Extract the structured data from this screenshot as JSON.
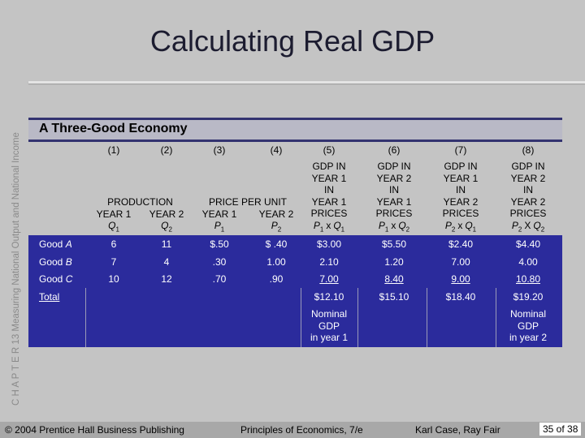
{
  "side_text": "C H A P T E R 13 Measuring National Output and National Income",
  "title": "Calculating Real GDP",
  "table": {
    "title": "A Three-Good Economy",
    "column_numbers": [
      "(1)",
      "(2)",
      "(3)",
      "(4)",
      "(5)",
      "(6)",
      "(7)",
      "(8)"
    ],
    "group_headers": [
      "PRODUCTION",
      "PRICE PER UNIT"
    ],
    "year_labels": [
      "YEAR 1",
      "YEAR 2",
      "YEAR 1",
      "YEAR 2"
    ],
    "symbols": [
      {
        "base": "Q",
        "sub": "1"
      },
      {
        "base": "Q",
        "sub": "2"
      },
      {
        "base": "P",
        "sub": "1"
      },
      {
        "base": "P",
        "sub": "2"
      }
    ],
    "gdp_headers": [
      {
        "lines": [
          "GDP IN",
          "YEAR 1",
          "IN",
          "YEAR 1",
          "PRICES"
        ],
        "formula": {
          "a": "P",
          "a_sub": "1",
          "op": "x",
          "b": "Q",
          "b_sub": "1"
        }
      },
      {
        "lines": [
          "GDP IN",
          "YEAR 2",
          "IN",
          "YEAR 1",
          "PRICES"
        ],
        "formula": {
          "a": "P",
          "a_sub": "1",
          "op": "x",
          "b": "Q",
          "b_sub": "2"
        }
      },
      {
        "lines": [
          "GDP IN",
          "YEAR 1",
          "IN",
          "YEAR 2",
          "PRICES"
        ],
        "formula": {
          "a": "P",
          "a_sub": "2",
          "op": "x",
          "b": "Q",
          "b_sub": "1"
        }
      },
      {
        "lines": [
          "GDP IN",
          "YEAR 2",
          "IN",
          "YEAR 2",
          "PRICES"
        ],
        "formula": {
          "a": "P",
          "a_sub": "2",
          "op": "X",
          "b": "Q",
          "b_sub": "2"
        }
      }
    ],
    "rows": [
      {
        "label": "Good",
        "label_italic": "A",
        "cells": [
          "6",
          "11",
          "$.50",
          "$ .40",
          "$3.00",
          "$5.50",
          "$2.40",
          "$4.40"
        ]
      },
      {
        "label": "Good",
        "label_italic": "B",
        "cells": [
          "7",
          "4",
          ".30",
          "1.00",
          "2.10",
          "1.20",
          "7.00",
          "4.00"
        ]
      },
      {
        "label": "Good",
        "label_italic": "C",
        "cells": [
          "10",
          "12",
          ".70",
          ".90",
          "7.00",
          "8.40",
          "9.00",
          "10.80"
        ]
      }
    ],
    "total": {
      "label": "Total",
      "cells": [
        "$12.10",
        "$15.10",
        "$18.40",
        "$19.20"
      ]
    },
    "year1_note": [
      "Nominal",
      "GDP",
      "in year 1"
    ],
    "year2_note": [
      "Nominal",
      "GDP",
      "in year 2"
    ]
  },
  "footer": {
    "copyright": "© 2004 Prentice Hall Business Publishing",
    "book": "Principles of Economics, 7/e",
    "authors": "Karl Case, Ray Fair",
    "page": "35 of 38"
  }
}
